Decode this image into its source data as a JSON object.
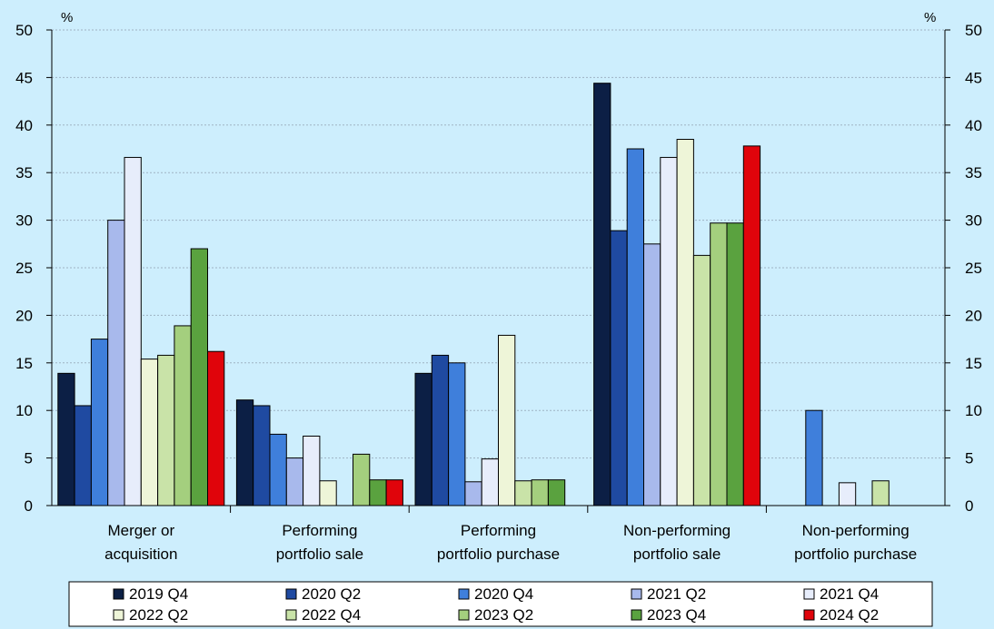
{
  "chart_data": {
    "type": "bar",
    "left_unit": "%",
    "right_unit": "%",
    "ylim": [
      0,
      50
    ],
    "yticks": [
      "0",
      "5",
      "10",
      "15",
      "20",
      "25",
      "30",
      "35",
      "40",
      "45",
      "50"
    ],
    "grid": true,
    "legend_position": "bottom",
    "categories": [
      [
        "Merger or",
        "acquisition"
      ],
      [
        "Performing",
        "portfolio sale"
      ],
      [
        "Performing",
        "portfolio purchase"
      ],
      [
        "Non-performing",
        "portfolio sale"
      ],
      [
        "Non-performing",
        "portfolio purchase"
      ]
    ],
    "series": [
      {
        "name": "2019 Q4",
        "color": "#0c1f45",
        "values": [
          13.9,
          11.1,
          13.9,
          44.4,
          0
        ]
      },
      {
        "name": "2020 Q2",
        "color": "#1f4aa1",
        "values": [
          10.5,
          10.5,
          15.8,
          28.9,
          0
        ]
      },
      {
        "name": "2020 Q4",
        "color": "#3f7fdb",
        "values": [
          17.5,
          7.5,
          15.0,
          37.5,
          10.0
        ]
      },
      {
        "name": "2021 Q2",
        "color": "#a8b9ec",
        "values": [
          30.0,
          5.0,
          2.5,
          27.5,
          0
        ]
      },
      {
        "name": "2021 Q4",
        "color": "#e7edfb",
        "values": [
          36.6,
          7.3,
          4.9,
          36.6,
          2.4
        ]
      },
      {
        "name": "2022 Q2",
        "color": "#eef5d8",
        "values": [
          15.4,
          2.6,
          17.9,
          38.5,
          0
        ]
      },
      {
        "name": "2022 Q4",
        "color": "#c9e3a8",
        "values": [
          15.8,
          0,
          2.6,
          26.3,
          2.6
        ]
      },
      {
        "name": "2023 Q2",
        "color": "#a4cf7e",
        "values": [
          18.9,
          5.4,
          2.7,
          29.7,
          0
        ]
      },
      {
        "name": "2023 Q4",
        "color": "#5aa23f",
        "values": [
          27.0,
          2.7,
          2.7,
          29.7,
          0
        ]
      },
      {
        "name": "2024 Q2",
        "color": "#e0040b",
        "values": [
          16.2,
          2.7,
          0,
          37.8,
          0
        ]
      }
    ]
  }
}
